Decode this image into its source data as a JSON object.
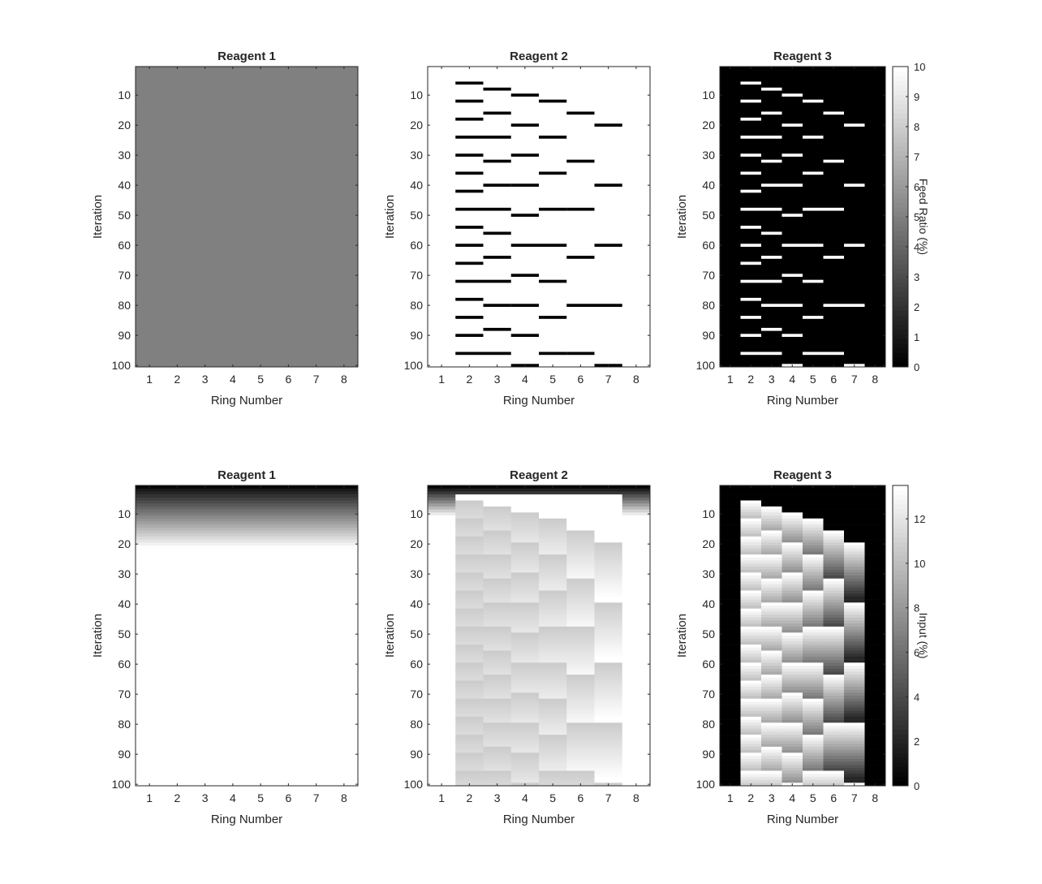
{
  "figure": {
    "background": "#ffffff",
    "axis_color": "#262626"
  },
  "chart_data": [
    {
      "type": "heatmap",
      "title": "Reagent 1",
      "xlabel": "Ring Number",
      "ylabel": "Iteration",
      "x_ticks": [
        "1",
        "2",
        "3",
        "4",
        "5",
        "6",
        "7",
        "8"
      ],
      "y_ticks": [
        "10",
        "20",
        "30",
        "40",
        "50",
        "60",
        "70",
        "80",
        "90",
        "100"
      ],
      "xlim": [
        0.5,
        8.5
      ],
      "ylim": [
        1,
        100
      ],
      "y_direction": "reverse",
      "colormap": "gray",
      "clim": [
        0,
        10
      ],
      "uniform_value": 5
    },
    {
      "type": "heatmap",
      "title": "Reagent 2",
      "xlabel": "Ring Number",
      "ylabel": "Iteration",
      "x_ticks": [
        "1",
        "2",
        "3",
        "4",
        "5",
        "6",
        "7",
        "8"
      ],
      "y_ticks": [
        "10",
        "20",
        "30",
        "40",
        "50",
        "60",
        "70",
        "80",
        "90",
        "100"
      ],
      "xlim": [
        0.5,
        8.5
      ],
      "ylim": [
        1,
        100
      ],
      "y_direction": "reverse",
      "colormap": "gray",
      "clim": [
        0,
        10
      ],
      "background_value": 10,
      "marks_value": 0,
      "marks": [
        {
          "row": 6,
          "rings": [
            2
          ]
        },
        {
          "row": 8,
          "rings": [
            3
          ]
        },
        {
          "row": 10,
          "rings": [
            4
          ]
        },
        {
          "row": 12,
          "rings": [
            2,
            5
          ]
        },
        {
          "row": 16,
          "rings": [
            3,
            6
          ]
        },
        {
          "row": 18,
          "rings": [
            2
          ]
        },
        {
          "row": 20,
          "rings": [
            4,
            7
          ]
        },
        {
          "row": 24,
          "rings": [
            2,
            3,
            5
          ]
        },
        {
          "row": 30,
          "rings": [
            2,
            4
          ]
        },
        {
          "row": 32,
          "rings": [
            3,
            6
          ]
        },
        {
          "row": 36,
          "rings": [
            2,
            5
          ]
        },
        {
          "row": 40,
          "rings": [
            3,
            4,
            7
          ]
        },
        {
          "row": 42,
          "rings": [
            2
          ]
        },
        {
          "row": 48,
          "rings": [
            2,
            3,
            5,
            6
          ]
        },
        {
          "row": 50,
          "rings": [
            4
          ]
        },
        {
          "row": 54,
          "rings": [
            2
          ]
        },
        {
          "row": 56,
          "rings": [
            3
          ]
        },
        {
          "row": 60,
          "rings": [
            2,
            4,
            5,
            7
          ]
        },
        {
          "row": 64,
          "rings": [
            3,
            6
          ]
        },
        {
          "row": 66,
          "rings": [
            2
          ]
        },
        {
          "row": 70,
          "rings": [
            4
          ]
        },
        {
          "row": 72,
          "rings": [
            2,
            3,
            5
          ]
        },
        {
          "row": 78,
          "rings": [
            2
          ]
        },
        {
          "row": 80,
          "rings": [
            3,
            4,
            6,
            7
          ]
        },
        {
          "row": 84,
          "rings": [
            2,
            5
          ]
        },
        {
          "row": 88,
          "rings": [
            3
          ]
        },
        {
          "row": 90,
          "rings": [
            2,
            4
          ]
        },
        {
          "row": 96,
          "rings": [
            2,
            3,
            5,
            6
          ]
        },
        {
          "row": 100,
          "rings": [
            4,
            7
          ]
        }
      ]
    },
    {
      "type": "heatmap",
      "title": "Reagent 3",
      "xlabel": "Ring Number",
      "ylabel": "Iteration",
      "x_ticks": [
        "1",
        "2",
        "3",
        "4",
        "5",
        "6",
        "7",
        "8"
      ],
      "y_ticks": [
        "10",
        "20",
        "30",
        "40",
        "50",
        "60",
        "70",
        "80",
        "90",
        "100"
      ],
      "xlim": [
        0.5,
        8.5
      ],
      "ylim": [
        1,
        100
      ],
      "y_direction": "reverse",
      "colormap": "gray",
      "clim": [
        0,
        10
      ],
      "background_value": 0,
      "marks_value": 10,
      "marks_same_as": "Reagent 2",
      "colorbar": {
        "label": "Feed Ratio (%)",
        "ticks": [
          "0",
          "1",
          "2",
          "3",
          "4",
          "5",
          "6",
          "7",
          "8",
          "9",
          "10"
        ],
        "range": [
          0,
          10
        ]
      }
    },
    {
      "type": "heatmap",
      "title": "Reagent 1",
      "xlabel": "Ring Number",
      "ylabel": "Iteration",
      "x_ticks": [
        "1",
        "2",
        "3",
        "4",
        "5",
        "6",
        "7",
        "8"
      ],
      "y_ticks": [
        "10",
        "20",
        "30",
        "40",
        "50",
        "60",
        "70",
        "80",
        "90",
        "100"
      ],
      "xlim": [
        0.5,
        8.5
      ],
      "ylim": [
        1,
        100
      ],
      "y_direction": "reverse",
      "colormap": "gray",
      "description_values": "rises from black at iteration 1 to white by about iteration 25, uniform across rings"
    },
    {
      "type": "heatmap",
      "title": "Reagent 2",
      "xlabel": "Ring Number",
      "ylabel": "Iteration",
      "x_ticks": [
        "1",
        "2",
        "3",
        "4",
        "5",
        "6",
        "7",
        "8"
      ],
      "y_ticks": [
        "10",
        "20",
        "30",
        "40",
        "50",
        "60",
        "70",
        "80",
        "90",
        "100"
      ],
      "xlim": [
        0.5,
        8.5
      ],
      "ylim": [
        1,
        100
      ],
      "y_direction": "reverse",
      "colormap": "gray"
    },
    {
      "type": "heatmap",
      "title": "Reagent 3",
      "xlabel": "Ring Number",
      "ylabel": "Iteration",
      "x_ticks": [
        "1",
        "2",
        "3",
        "4",
        "5",
        "6",
        "7",
        "8"
      ],
      "y_ticks": [
        "10",
        "20",
        "30",
        "40",
        "50",
        "60",
        "70",
        "80",
        "90",
        "100"
      ],
      "xlim": [
        0.5,
        8.5
      ],
      "ylim": [
        1,
        100
      ],
      "y_direction": "reverse",
      "colormap": "gray",
      "colorbar": {
        "label": "Input (%)",
        "ticks": [
          "0",
          "2",
          "4",
          "6",
          "8",
          "10",
          "12"
        ],
        "range": [
          0,
          13.5
        ]
      }
    }
  ]
}
